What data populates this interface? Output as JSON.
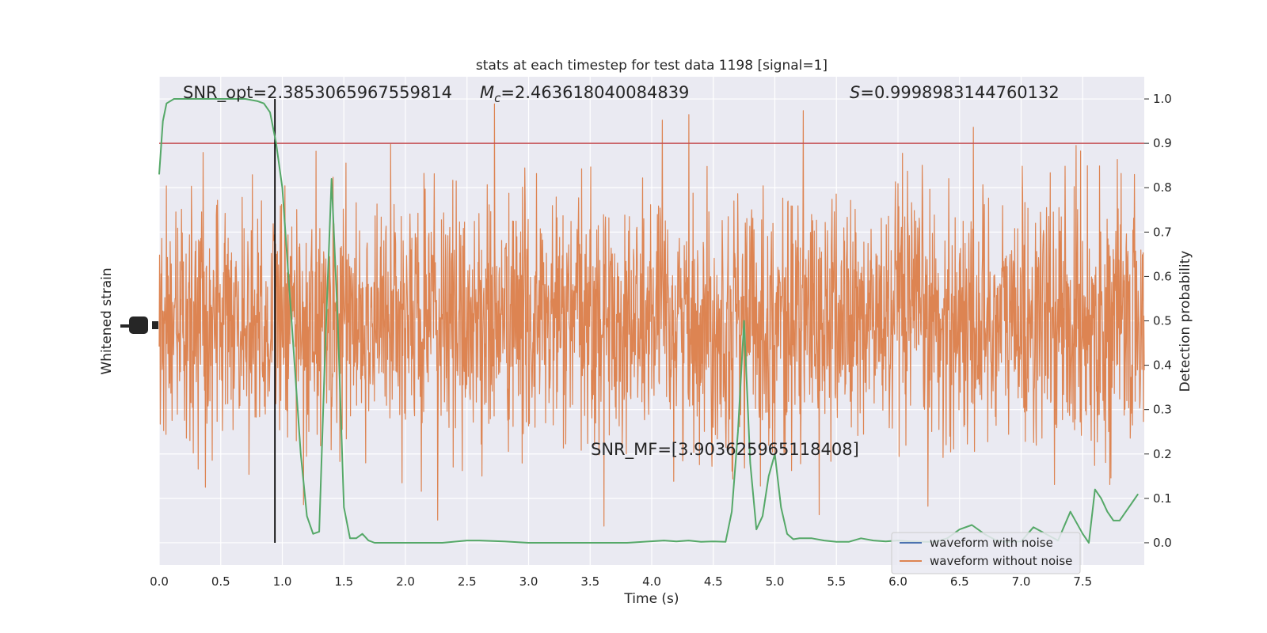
{
  "chart_data": {
    "type": "line",
    "title": "stats at each timestep for test data 1198 [signal=1]",
    "xlabel": "Time (s)",
    "ylabel_left": "Whitened strain",
    "ylabel_right": "Detection probability",
    "xlim": [
      0.0,
      8.0
    ],
    "ylim_right": [
      -0.05,
      1.05
    ],
    "x_ticks": [
      "0.0",
      "0.5",
      "1.0",
      "1.5",
      "2.0",
      "2.5",
      "3.0",
      "3.5",
      "4.0",
      "4.5",
      "5.0",
      "5.5",
      "6.0",
      "6.5",
      "7.0",
      "7.5"
    ],
    "x_tick_values": [
      0.0,
      0.5,
      1.0,
      1.5,
      2.0,
      2.5,
      3.0,
      3.5,
      4.0,
      4.5,
      5.0,
      5.5,
      6.0,
      6.5,
      7.0,
      7.5
    ],
    "y_ticks_right": [
      "0.0",
      "0.1",
      "0.2",
      "0.3",
      "0.4",
      "0.5",
      "0.6",
      "0.7",
      "0.8",
      "0.9",
      "1.0"
    ],
    "y_tick_values_right": [
      0.0,
      0.1,
      0.2,
      0.3,
      0.4,
      0.5,
      0.6,
      0.7,
      0.8,
      0.9,
      1.0
    ],
    "grid": true,
    "legend_position": "lower-right",
    "annotations": {
      "snr_opt": "SNR_opt=2.3853065967559814",
      "mc_symbol": "M",
      "mc_sub": "c",
      "mc_value": "=2.463618040084839",
      "s_symbol": "S",
      "s_value": "=0.9998983144760132",
      "snr_mf": "SNR_MF=[3.903625965118408]"
    },
    "threshold": 0.9,
    "marker_time": 0.94,
    "series": [
      {
        "name": "waveform with noise",
        "color": "#4c72b0",
        "kind": "strain"
      },
      {
        "name": "waveform without noise",
        "color": "#dd8452",
        "kind": "strain"
      },
      {
        "color": "#55a868",
        "kind": "probability",
        "x": [
          0.0,
          0.03,
          0.06,
          0.12,
          0.2,
          0.3,
          0.4,
          0.5,
          0.6,
          0.7,
          0.8,
          0.85,
          0.9,
          0.95,
          1.0,
          1.05,
          1.1,
          1.15,
          1.2,
          1.25,
          1.3,
          1.35,
          1.4,
          1.45,
          1.5,
          1.55,
          1.6,
          1.65,
          1.7,
          1.75,
          1.85,
          1.95,
          2.1,
          2.3,
          2.5,
          2.6,
          2.8,
          3.0,
          3.2,
          3.5,
          3.8,
          4.1,
          4.2,
          4.3,
          4.4,
          4.5,
          4.6,
          4.65,
          4.7,
          4.75,
          4.8,
          4.85,
          4.9,
          4.95,
          5.0,
          5.05,
          5.1,
          5.15,
          5.2,
          5.3,
          5.4,
          5.5,
          5.6,
          5.7,
          5.8,
          5.9,
          6.0,
          6.1,
          6.2,
          6.3,
          6.4,
          6.5,
          6.6,
          6.7,
          6.8,
          6.9,
          7.0,
          7.1,
          7.2,
          7.3,
          7.4,
          7.5,
          7.55,
          7.6,
          7.65,
          7.7,
          7.75,
          7.8,
          7.85,
          7.9,
          7.95
        ],
        "y": [
          0.83,
          0.95,
          0.99,
          1.0,
          1.0,
          1.0,
          1.0,
          1.0,
          1.0,
          1.0,
          0.995,
          0.99,
          0.97,
          0.9,
          0.8,
          0.6,
          0.4,
          0.2,
          0.06,
          0.02,
          0.025,
          0.45,
          0.82,
          0.5,
          0.08,
          0.01,
          0.01,
          0.02,
          0.005,
          0.0,
          0.0,
          0.0,
          0.0,
          0.0,
          0.005,
          0.005,
          0.003,
          0.0,
          0.0,
          0.0,
          0.0,
          0.005,
          0.003,
          0.005,
          0.002,
          0.003,
          0.002,
          0.07,
          0.25,
          0.5,
          0.18,
          0.03,
          0.06,
          0.15,
          0.2,
          0.08,
          0.02,
          0.008,
          0.01,
          0.01,
          0.005,
          0.002,
          0.002,
          0.01,
          0.005,
          0.003,
          0.005,
          0.003,
          0.002,
          0.002,
          0.01,
          0.03,
          0.04,
          0.02,
          0.005,
          0.002,
          0.003,
          0.035,
          0.02,
          0.005,
          0.07,
          0.02,
          0.0,
          0.12,
          0.1,
          0.07,
          0.05,
          0.05,
          0.07,
          0.09,
          0.11
        ]
      }
    ]
  }
}
